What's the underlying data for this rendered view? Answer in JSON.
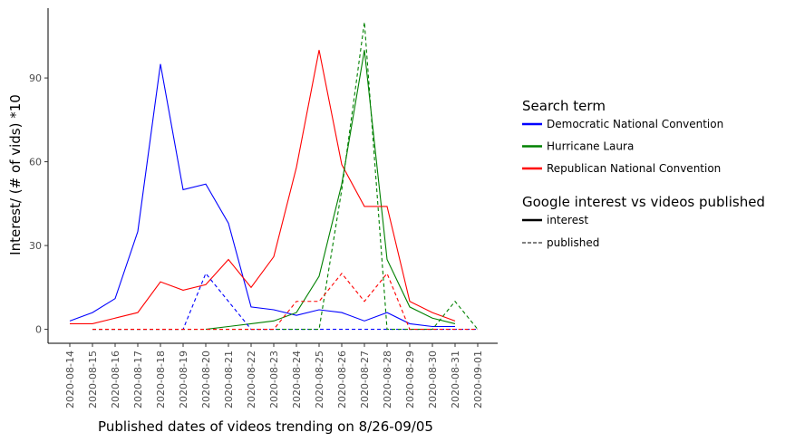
{
  "chart_data": {
    "type": "line",
    "title": "",
    "xlabel": "Published dates of videos trending on 8/26-09/05",
    "ylabel": "Interest/ (# of vids) *10",
    "categories": [
      "2020-08-14",
      "2020-08-15",
      "2020-08-16",
      "2020-08-17",
      "2020-08-18",
      "2020-08-19",
      "2020-08-20",
      "2020-08-21",
      "2020-08-22",
      "2020-08-23",
      "2020-08-24",
      "2020-08-25",
      "2020-08-26",
      "2020-08-27",
      "2020-08-28",
      "2020-08-29",
      "2020-08-30",
      "2020-08-31",
      "2020-09-01"
    ],
    "ylim": [
      -5,
      115
    ],
    "yticks": [
      0,
      30,
      60,
      90
    ],
    "grid": false,
    "legend_placement": "right",
    "legend": {
      "color_title": "Search term",
      "linetype_title": "Google interest vs videos published",
      "linetype_items": [
        {
          "label": "interest",
          "style": "solid"
        },
        {
          "label": "published",
          "style": "dashed"
        }
      ]
    },
    "series": [
      {
        "name": "Democratic National Convention",
        "kind": "interest",
        "color": "#0000ff",
        "style": "solid",
        "values": [
          3,
          6,
          11,
          35,
          95,
          50,
          52,
          38,
          8,
          7,
          5,
          7,
          6,
          3,
          6,
          2,
          1,
          1,
          null
        ]
      },
      {
        "name": "Hurricane Laura",
        "kind": "interest",
        "color": "#008000",
        "style": "solid",
        "values": [
          null,
          null,
          null,
          null,
          null,
          null,
          0,
          1,
          2,
          3,
          6,
          19,
          52,
          100,
          25,
          8,
          4,
          2,
          null
        ]
      },
      {
        "name": "Republican National Convention",
        "kind": "interest",
        "color": "#ff0000",
        "style": "solid",
        "values": [
          2,
          2,
          4,
          6,
          17,
          14,
          16,
          25,
          15,
          26,
          58,
          100,
          59,
          44,
          44,
          10,
          6,
          3,
          null
        ]
      },
      {
        "name": "Democratic National Convention",
        "kind": "published",
        "color": "#0000ff",
        "style": "dashed",
        "values": [
          null,
          0,
          0,
          0,
          0,
          0,
          20,
          10,
          0,
          0,
          0,
          0,
          0,
          0,
          0,
          0,
          0,
          0,
          0
        ]
      },
      {
        "name": "Hurricane Laura",
        "kind": "published",
        "color": "#008000",
        "style": "dashed",
        "values": [
          null,
          0,
          0,
          0,
          0,
          0,
          0,
          0,
          0,
          0,
          0,
          0,
          50,
          110,
          0,
          0,
          0,
          10,
          0
        ]
      },
      {
        "name": "Republican National Convention",
        "kind": "published",
        "color": "#ff0000",
        "style": "dashed",
        "values": [
          null,
          0,
          0,
          0,
          0,
          0,
          0,
          0,
          0,
          0,
          10,
          10,
          20,
          10,
          20,
          0,
          0,
          0,
          0
        ]
      }
    ]
  }
}
